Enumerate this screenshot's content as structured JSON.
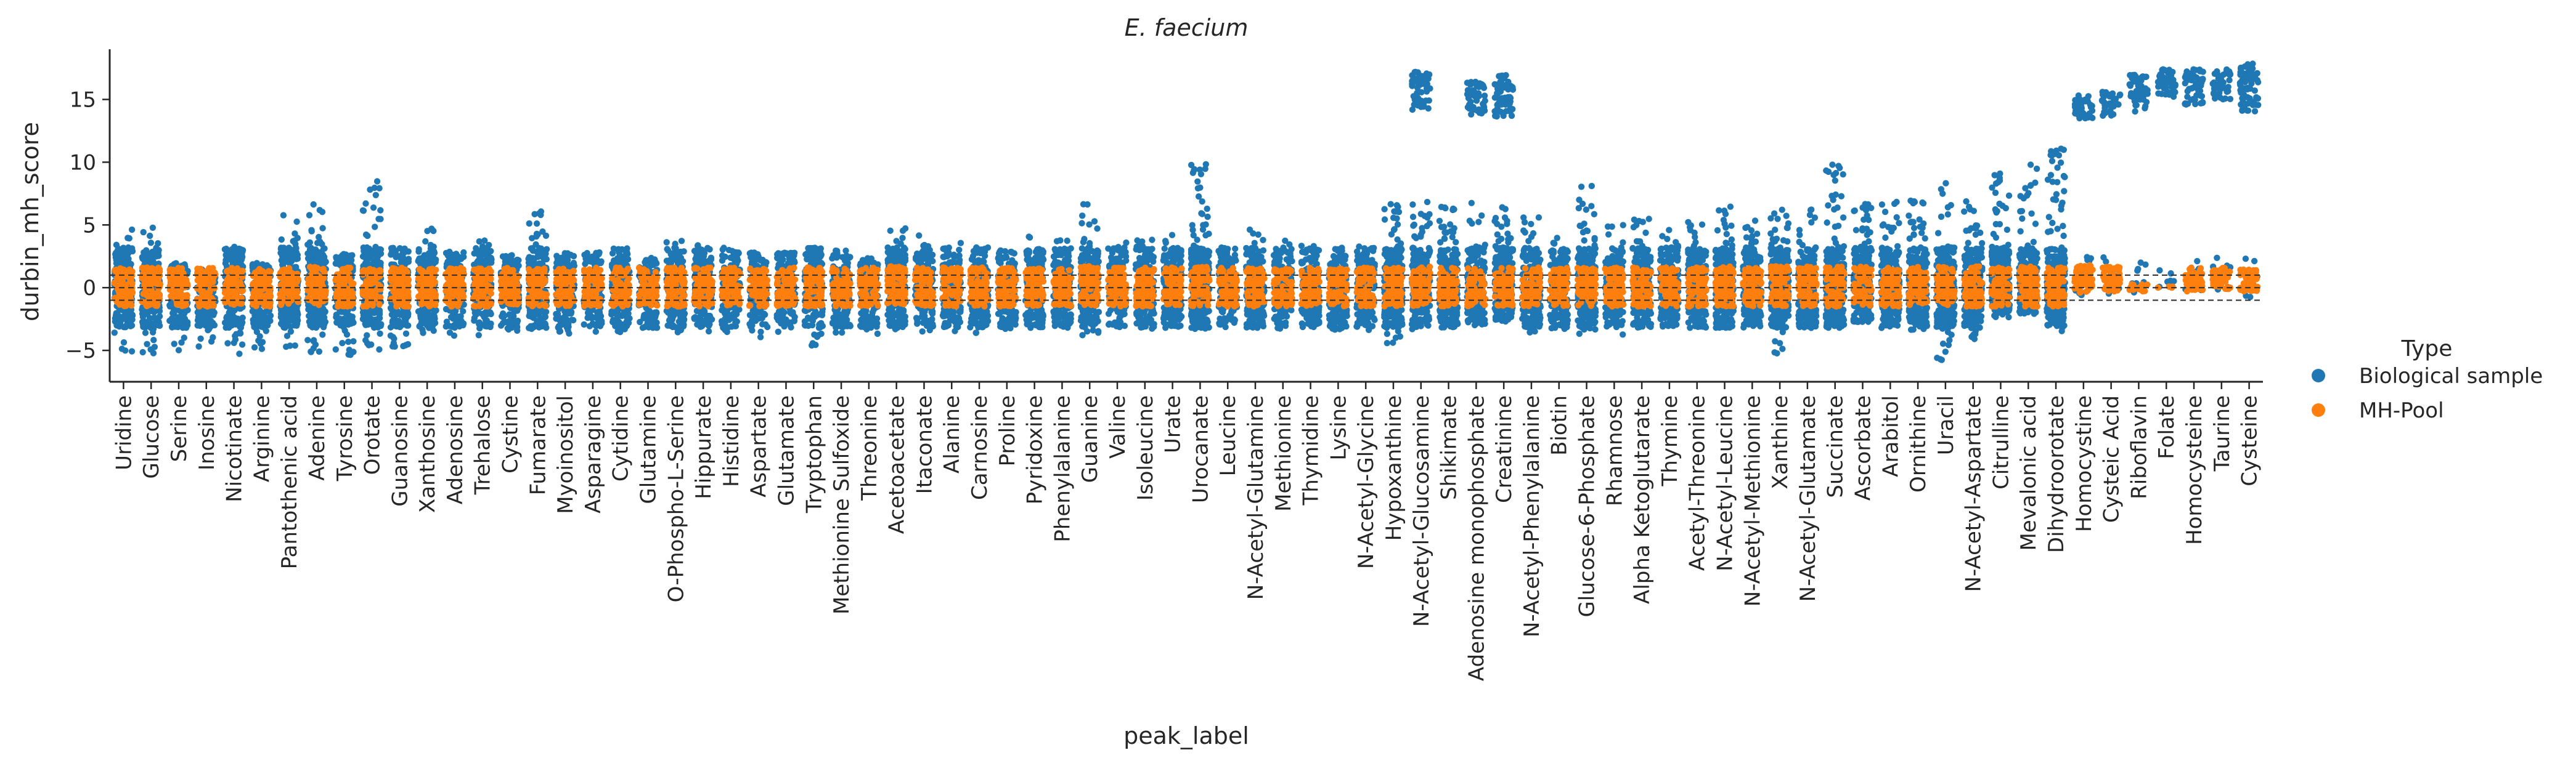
{
  "chart_data": {
    "type": "scatter",
    "subtype": "strip",
    "title": "E. faecium",
    "xlabel": "peak_label",
    "ylabel": "durbin_mh_score",
    "ylim": [
      -7.5,
      19
    ],
    "yticks": [
      -5,
      0,
      5,
      10,
      15
    ],
    "reference_lines": [
      -1,
      0,
      1
    ],
    "grid": false,
    "legend": {
      "title": "Type",
      "placement": "right",
      "entries": [
        {
          "name": "Biological sample",
          "color": "#1f77b4"
        },
        {
          "name": "MH-Pool",
          "color": "#ff7f0e"
        }
      ]
    },
    "categories": [
      "Uridine",
      "Glucose",
      "Serine",
      "Inosine",
      "Nicotinate",
      "Arginine",
      "Pantothenic acid",
      "Adenine",
      "Tyrosine",
      "Orotate",
      "Guanosine",
      "Xanthosine",
      "Adenosine",
      "Trehalose",
      "Cystine",
      "Fumarate",
      "Myoinositol",
      "Asparagine",
      "Cytidine",
      "Glutamine",
      "O-Phospho-L-Serine",
      "Hippurate",
      "Histidine",
      "Aspartate",
      "Glutamate",
      "Tryptophan",
      "Methionine Sulfoxide",
      "Threonine",
      "Acetoacetate",
      "Itaconate",
      "Alanine",
      "Carnosine",
      "Proline",
      "Pyridoxine",
      "Phenylalanine",
      "Guanine",
      "Valine",
      "Isoleucine",
      "Urate",
      "Urocanate",
      "Leucine",
      "N-Acetyl-Glutamine",
      "Methionine",
      "Thymidine",
      "Lysine",
      "N-Acetyl-Glycine",
      "Hypoxanthine",
      "N-Acetyl-Glucosamine",
      "Shikimate",
      "Adenosine monophosphate",
      "Creatinine",
      "N-Acetyl-Phenylalanine",
      "Biotin",
      "Glucose-6-Phosphate",
      "Rhamnose",
      "Alpha Ketoglutarate",
      "Thymine",
      "Acetyl-Threonine",
      "N-Acetyl-Leucine",
      "N-Acetyl-Methionine",
      "Xanthine",
      "N-Acetyl-Glutamate",
      "Succinate",
      "Ascorbate",
      "Arabitol",
      "Ornithine",
      "Uracil",
      "N-Acetyl-Aspartate",
      "Citrulline",
      "Mevalonic acid",
      "Dihydroorotate",
      "Homocystine",
      "Cysteic Acid",
      "Riboflavin",
      "Folate",
      "Homocysteine",
      "Taurine",
      "Cysteine"
    ],
    "series": [
      {
        "name": "Biological sample",
        "color": "#1f77b4",
        "summary": "per-category spread of scores",
        "min": [
          -5.2,
          -5.3,
          -5.2,
          -4.8,
          -5.4,
          -5.1,
          -5.3,
          -5.4,
          -5.4,
          -5.3,
          -4.8,
          -4.3,
          -4.0,
          -3.8,
          -3.6,
          -3.5,
          -3.8,
          -3.6,
          -3.6,
          -3.4,
          -3.6,
          -3.5,
          -3.6,
          -4.0,
          -3.8,
          -4.8,
          -3.8,
          -3.8,
          -4.0,
          -3.7,
          -3.5,
          -4.0,
          -3.3,
          -3.2,
          -3.4,
          -3.9,
          -3.6,
          -3.7,
          -3.4,
          -3.7,
          -3.6,
          -3.4,
          -3.3,
          -3.2,
          -3.5,
          -3.6,
          -4.6,
          -3.3,
          -3.4,
          -3.1,
          -2.8,
          -3.6,
          -3.5,
          -3.8,
          -4.0,
          -3.4,
          -3.3,
          -3.4,
          -3.5,
          -3.4,
          -5.3,
          -3.4,
          -3.3,
          -2.8,
          -3.2,
          -3.6,
          -6.3,
          -4.5,
          -2.4,
          -2.1,
          -3.5,
          -0.6,
          -0.5,
          -0.8,
          -0.1,
          -0.6,
          -0.6,
          -0.8
        ],
        "max": [
          5.0,
          5.2,
          2.0,
          1.5,
          3.5,
          2.0,
          5.8,
          6.8,
          2.8,
          8.8,
          3.5,
          4.8,
          3.0,
          3.8,
          2.6,
          6.1,
          2.8,
          2.9,
          4.1,
          2.4,
          3.8,
          3.6,
          3.3,
          2.8,
          2.8,
          3.2,
          3.0,
          2.4,
          5.1,
          4.2,
          3.6,
          3.2,
          3.0,
          4.5,
          3.8,
          6.8,
          3.6,
          4.0,
          4.2,
          9.9,
          3.4,
          4.9,
          3.8,
          3.8,
          3.4,
          3.8,
          7.0,
          17.2,
          6.5,
          16.4,
          17.0,
          6.0,
          4.0,
          8.2,
          5.0,
          5.7,
          4.6,
          5.3,
          6.5,
          6.1,
          6.3,
          6.9,
          10.2,
          7.5,
          7.0,
          7.0,
          8.4,
          7.2,
          9.2,
          10.0,
          11.2,
          15.4,
          15.6,
          17.0,
          17.4,
          17.4,
          17.4,
          17.9
        ],
        "high_cluster": [
          null,
          null,
          null,
          null,
          null,
          null,
          null,
          null,
          null,
          null,
          null,
          null,
          null,
          null,
          null,
          null,
          null,
          null,
          null,
          null,
          null,
          null,
          null,
          null,
          null,
          null,
          null,
          null,
          null,
          null,
          null,
          null,
          null,
          null,
          null,
          null,
          null,
          null,
          null,
          null,
          null,
          null,
          null,
          null,
          null,
          null,
          null,
          [
            14.1,
            17.2
          ],
          null,
          [
            13.7,
            16.4
          ],
          [
            13.6,
            17.0
          ],
          null,
          null,
          null,
          null,
          null,
          null,
          null,
          null,
          null,
          null,
          null,
          null,
          null,
          null,
          null,
          null,
          null,
          null,
          null,
          null,
          [
            13.5,
            15.4
          ],
          [
            13.6,
            15.6
          ],
          [
            14.0,
            17.0
          ],
          [
            15.2,
            17.4
          ],
          [
            14.6,
            17.4
          ],
          [
            15.0,
            17.4
          ],
          [
            14.0,
            17.9
          ]
        ]
      },
      {
        "name": "MH-Pool",
        "color": "#ff7f0e",
        "summary": "per-category spread of scores",
        "min": [
          -1.5,
          -1.5,
          -1.5,
          -1.5,
          -1.5,
          -1.5,
          -1.5,
          -1.5,
          -1.5,
          -1.5,
          -1.5,
          -1.5,
          -1.5,
          -1.5,
          -1.5,
          -1.5,
          -1.5,
          -1.5,
          -1.5,
          -1.5,
          -1.5,
          -1.5,
          -1.5,
          -1.5,
          -1.5,
          -1.5,
          -1.5,
          -1.5,
          -1.5,
          -1.5,
          -1.5,
          -1.5,
          -1.5,
          -1.5,
          -1.5,
          -1.5,
          -1.5,
          -1.5,
          -1.5,
          -1.5,
          -1.5,
          -1.5,
          -1.5,
          -1.5,
          -1.5,
          -1.5,
          -1.5,
          -1.5,
          -1.5,
          -1.5,
          -1.5,
          -1.5,
          -1.5,
          -1.5,
          -1.5,
          -1.5,
          -1.5,
          -1.5,
          -1.5,
          -1.5,
          -1.5,
          -1.5,
          -1.5,
          -1.5,
          -1.5,
          -1.5,
          -1.5,
          -1.5,
          -1.5,
          -1.5,
          -1.5,
          -0.4,
          -0.3,
          -0.3,
          0.0,
          -0.3,
          -0.2,
          -0.3
        ],
        "max": [
          1.6,
          1.6,
          1.6,
          1.6,
          1.6,
          1.6,
          1.6,
          1.7,
          1.6,
          1.6,
          1.6,
          1.6,
          1.6,
          1.6,
          1.6,
          1.6,
          1.6,
          1.6,
          1.6,
          1.6,
          1.6,
          1.6,
          1.6,
          1.6,
          1.6,
          1.6,
          1.6,
          1.6,
          1.7,
          1.6,
          1.6,
          1.6,
          1.6,
          1.6,
          1.6,
          1.7,
          1.6,
          1.6,
          1.6,
          1.7,
          1.6,
          1.6,
          1.6,
          1.6,
          1.6,
          1.6,
          1.6,
          1.7,
          1.6,
          1.6,
          1.6,
          1.6,
          1.6,
          1.6,
          1.6,
          1.6,
          1.6,
          1.6,
          1.7,
          1.6,
          1.7,
          1.7,
          1.7,
          1.7,
          1.7,
          1.7,
          1.7,
          1.7,
          1.7,
          1.7,
          1.7,
          1.8,
          1.7,
          0.3,
          0.1,
          1.6,
          1.7,
          1.5
        ]
      }
    ]
  }
}
